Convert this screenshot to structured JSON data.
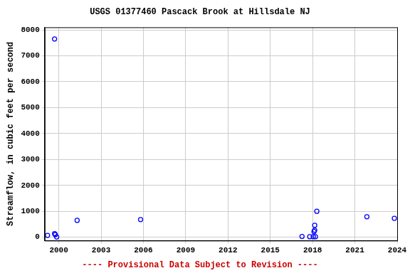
{
  "chart_data": {
    "type": "scatter",
    "title": "USGS 01377460 Pascack Brook at Hillsdale NJ",
    "subtitle": "---- Provisional Data Subject to Revision ----",
    "ylabel": "Streamflow, in cubic feet per second",
    "x": [
      1999.2,
      1999.7,
      1999.7,
      1999.75,
      1999.85,
      2001.3,
      2005.8,
      2017.25,
      2017.8,
      2018.05,
      2018.1,
      2018.15,
      2018.15,
      2018.2,
      2018.3,
      2021.85,
      2023.8
    ],
    "values": [
      70,
      7650,
      140,
      100,
      10,
      650,
      680,
      30,
      20,
      20,
      220,
      270,
      460,
      20,
      1000,
      790,
      730
    ],
    "color": "#0000ff",
    "marker": "circle",
    "xlim": [
      1999.0,
      2024
    ],
    "xticks": [
      2000,
      2003,
      2006,
      2009,
      2012,
      2015,
      2018,
      2021,
      2024
    ],
    "ylim": [
      -130,
      8100
    ],
    "yticks": [
      0,
      1000,
      2000,
      3000,
      4000,
      5000,
      6000,
      7000,
      8000
    ],
    "grid": true
  }
}
